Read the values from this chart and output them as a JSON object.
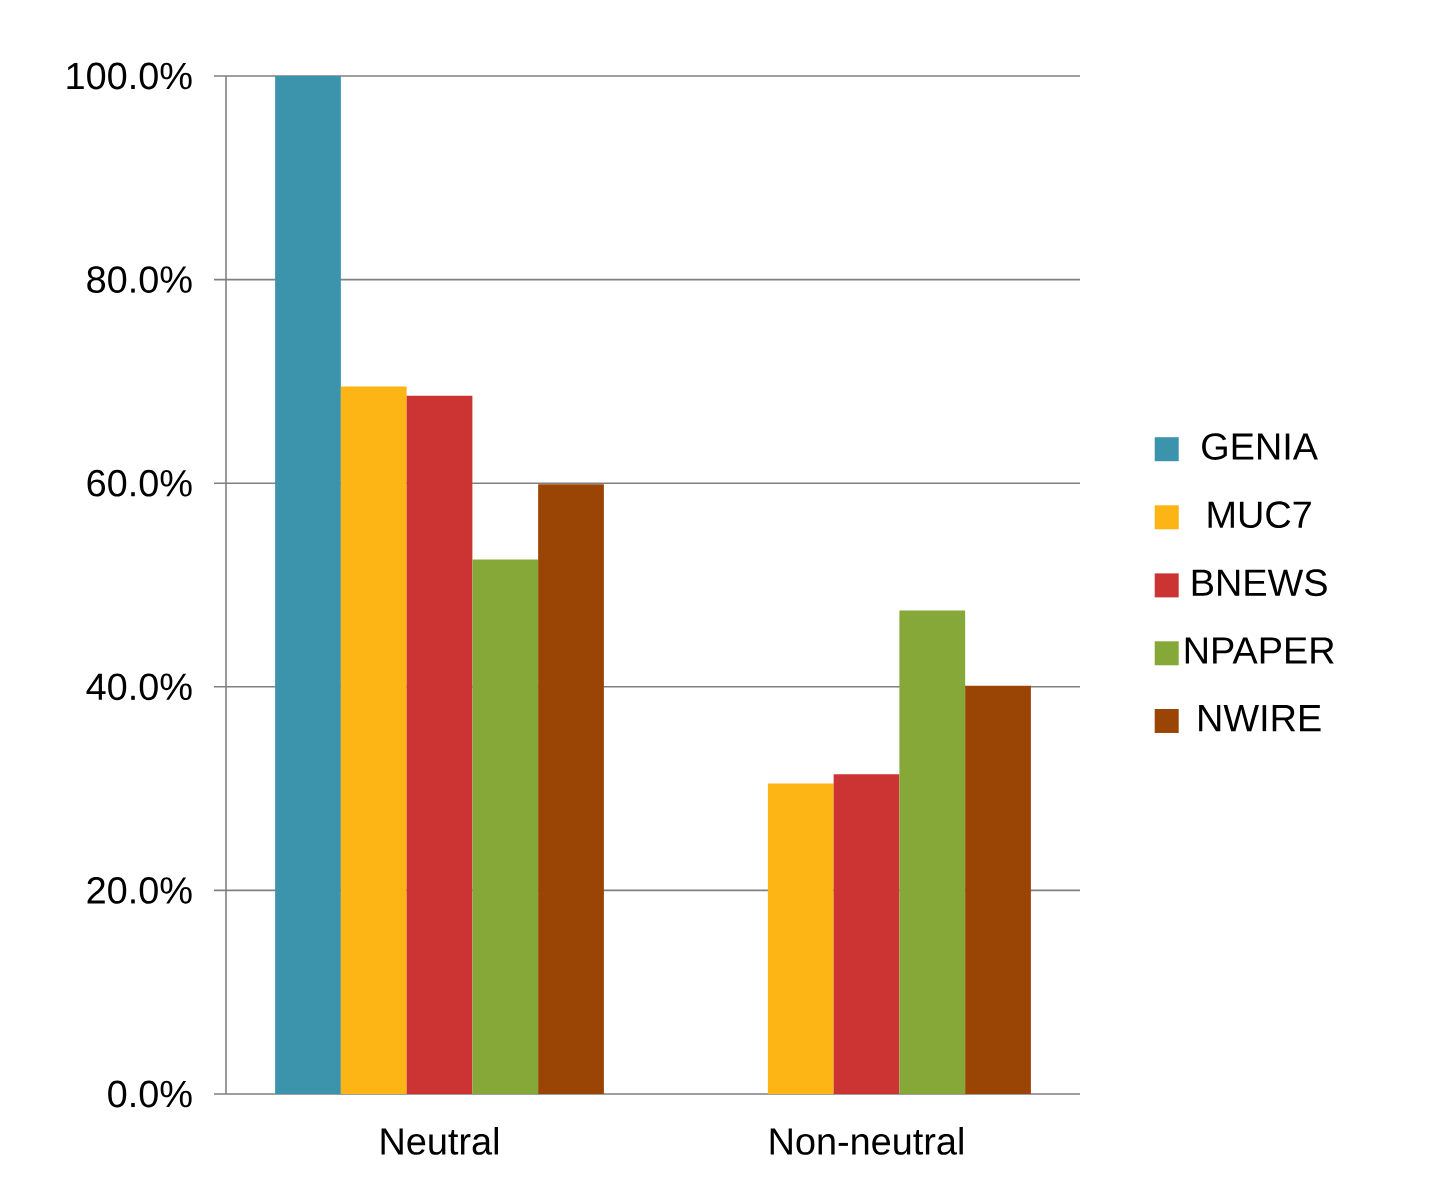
{
  "chart_data": {
    "type": "bar",
    "categories": [
      "Neutral",
      "Non-neutral"
    ],
    "series": [
      {
        "name": "GENIA",
        "color": "#3c93ac",
        "values": [
          100,
          0
        ]
      },
      {
        "name": "MUC7",
        "color": "#fdb515",
        "values": [
          69.5,
          30.5
        ]
      },
      {
        "name": "BNEWS",
        "color": "#cc3333",
        "values": [
          68.6,
          31.4
        ]
      },
      {
        "name": "NPAPER",
        "color": "#86a838",
        "values": [
          52.5,
          47.5
        ]
      },
      {
        "name": "NWIRE",
        "color": "#9a4506",
        "values": [
          59.9,
          40.1
        ]
      }
    ],
    "ylim": [
      0,
      100
    ],
    "yticks": [
      {
        "value": 0,
        "label": "0.0%"
      },
      {
        "value": 20,
        "label": "20.0%"
      },
      {
        "value": 40,
        "label": "40.0%"
      },
      {
        "value": 60,
        "label": "60.0%"
      },
      {
        "value": 80,
        "label": "80.0%"
      },
      {
        "value": 100,
        "label": "100.0%"
      }
    ],
    "grid": "y",
    "legend": "right"
  }
}
